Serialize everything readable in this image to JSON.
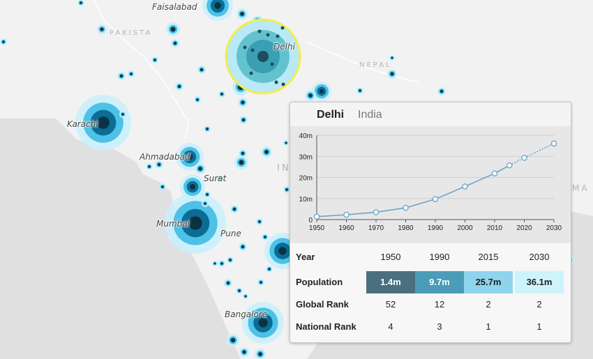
{
  "colors": {
    "land": "#f2f2f2",
    "sea": "#e0e0e0",
    "bubble_outer": "#c8f0fb",
    "bubble_mid": "#4dc1e8",
    "bubble_inner": "#0b6d94",
    "bubble_core": "#0a3242",
    "highlight_ring": "#f4ec4c",
    "chart_line": "#6ea6c8"
  },
  "map": {
    "cities": [
      {
        "name": "Faisalabad"
      },
      {
        "name": "Delhi"
      },
      {
        "name": "Karachi"
      },
      {
        "name": "Ahmadabad"
      },
      {
        "name": "Surat"
      },
      {
        "name": "Mumbai"
      },
      {
        "name": "Pune"
      },
      {
        "name": "Bangalore"
      }
    ],
    "countries": [
      {
        "name": "PAKISTA"
      },
      {
        "name": "NEPAL"
      },
      {
        "name": "IN"
      },
      {
        "name": "MA"
      }
    ]
  },
  "popup": {
    "city": "Delhi",
    "country": "India",
    "table": {
      "row_headers": [
        "Year",
        "Population",
        "Global Rank",
        "National Rank"
      ],
      "years": [
        "1950",
        "1990",
        "2015",
        "2030"
      ],
      "population": [
        "1.4m",
        "9.7m",
        "25.7m",
        "36.1m"
      ],
      "population_colors": [
        "#4a7080",
        "#4a9cb8",
        "#8fd3ec",
        "#cdf3fb"
      ],
      "population_text_colors": [
        "#ffffff",
        "#ffffff",
        "#222222",
        "#222222"
      ],
      "global_rank": [
        "52",
        "12",
        "2",
        "2"
      ],
      "national_rank": [
        "4",
        "3",
        "1",
        "1"
      ]
    }
  },
  "chart_data": {
    "type": "line",
    "title": "",
    "xlabel": "",
    "ylabel": "",
    "x_ticks": [
      "1950",
      "1960",
      "1970",
      "1980",
      "1990",
      "2000",
      "2010",
      "2020",
      "2030"
    ],
    "y_ticks": [
      "0",
      "10m",
      "20m",
      "30m",
      "40m"
    ],
    "xlim": [
      1950,
      2030
    ],
    "ylim": [
      0,
      40
    ],
    "grid": true,
    "series": [
      {
        "style": "solid",
        "x": [
          1950,
          1960,
          1970,
          1980,
          1990,
          2000,
          2010,
          2015
        ],
        "y": [
          1.4,
          2.3,
          3.5,
          5.6,
          9.7,
          15.7,
          21.9,
          25.7
        ]
      },
      {
        "style": "dotted",
        "x": [
          2015,
          2020,
          2030
        ],
        "y": [
          25.7,
          29.3,
          36.1
        ]
      }
    ]
  }
}
